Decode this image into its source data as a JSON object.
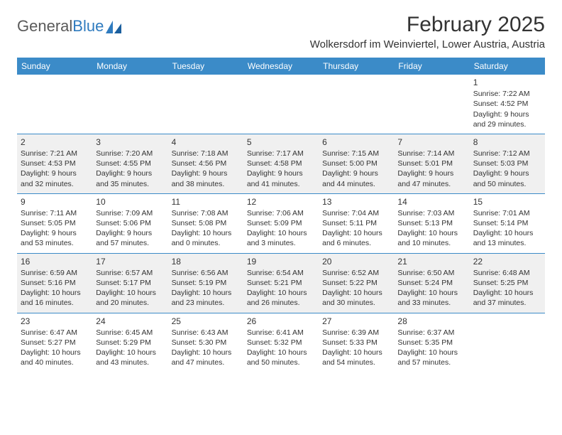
{
  "logo": {
    "text1": "General",
    "text2": "Blue"
  },
  "title": "February 2025",
  "location": "Wolkersdorf im Weinviertel, Lower Austria, Austria",
  "colors": {
    "header_bg": "#3b8bc8",
    "header_text": "#ffffff",
    "border": "#3b8bc8",
    "shade_bg": "#f0f0f0",
    "body_text": "#333333",
    "logo_gray": "#5a5a5a",
    "logo_blue": "#2f7bbf"
  },
  "day_names": [
    "Sunday",
    "Monday",
    "Tuesday",
    "Wednesday",
    "Thursday",
    "Friday",
    "Saturday"
  ],
  "weeks": [
    [
      {
        "empty": true
      },
      {
        "empty": true
      },
      {
        "empty": true
      },
      {
        "empty": true
      },
      {
        "empty": true
      },
      {
        "empty": true
      },
      {
        "n": "1",
        "sr": "Sunrise: 7:22 AM",
        "ss": "Sunset: 4:52 PM",
        "dl1": "Daylight: 9 hours",
        "dl2": "and 29 minutes."
      }
    ],
    [
      {
        "n": "2",
        "shade": true,
        "sr": "Sunrise: 7:21 AM",
        "ss": "Sunset: 4:53 PM",
        "dl1": "Daylight: 9 hours",
        "dl2": "and 32 minutes."
      },
      {
        "n": "3",
        "shade": true,
        "sr": "Sunrise: 7:20 AM",
        "ss": "Sunset: 4:55 PM",
        "dl1": "Daylight: 9 hours",
        "dl2": "and 35 minutes."
      },
      {
        "n": "4",
        "shade": true,
        "sr": "Sunrise: 7:18 AM",
        "ss": "Sunset: 4:56 PM",
        "dl1": "Daylight: 9 hours",
        "dl2": "and 38 minutes."
      },
      {
        "n": "5",
        "shade": true,
        "sr": "Sunrise: 7:17 AM",
        "ss": "Sunset: 4:58 PM",
        "dl1": "Daylight: 9 hours",
        "dl2": "and 41 minutes."
      },
      {
        "n": "6",
        "shade": true,
        "sr": "Sunrise: 7:15 AM",
        "ss": "Sunset: 5:00 PM",
        "dl1": "Daylight: 9 hours",
        "dl2": "and 44 minutes."
      },
      {
        "n": "7",
        "shade": true,
        "sr": "Sunrise: 7:14 AM",
        "ss": "Sunset: 5:01 PM",
        "dl1": "Daylight: 9 hours",
        "dl2": "and 47 minutes."
      },
      {
        "n": "8",
        "shade": true,
        "sr": "Sunrise: 7:12 AM",
        "ss": "Sunset: 5:03 PM",
        "dl1": "Daylight: 9 hours",
        "dl2": "and 50 minutes."
      }
    ],
    [
      {
        "n": "9",
        "sr": "Sunrise: 7:11 AM",
        "ss": "Sunset: 5:05 PM",
        "dl1": "Daylight: 9 hours",
        "dl2": "and 53 minutes."
      },
      {
        "n": "10",
        "sr": "Sunrise: 7:09 AM",
        "ss": "Sunset: 5:06 PM",
        "dl1": "Daylight: 9 hours",
        "dl2": "and 57 minutes."
      },
      {
        "n": "11",
        "sr": "Sunrise: 7:08 AM",
        "ss": "Sunset: 5:08 PM",
        "dl1": "Daylight: 10 hours",
        "dl2": "and 0 minutes."
      },
      {
        "n": "12",
        "sr": "Sunrise: 7:06 AM",
        "ss": "Sunset: 5:09 PM",
        "dl1": "Daylight: 10 hours",
        "dl2": "and 3 minutes."
      },
      {
        "n": "13",
        "sr": "Sunrise: 7:04 AM",
        "ss": "Sunset: 5:11 PM",
        "dl1": "Daylight: 10 hours",
        "dl2": "and 6 minutes."
      },
      {
        "n": "14",
        "sr": "Sunrise: 7:03 AM",
        "ss": "Sunset: 5:13 PM",
        "dl1": "Daylight: 10 hours",
        "dl2": "and 10 minutes."
      },
      {
        "n": "15",
        "sr": "Sunrise: 7:01 AM",
        "ss": "Sunset: 5:14 PM",
        "dl1": "Daylight: 10 hours",
        "dl2": "and 13 minutes."
      }
    ],
    [
      {
        "n": "16",
        "shade": true,
        "sr": "Sunrise: 6:59 AM",
        "ss": "Sunset: 5:16 PM",
        "dl1": "Daylight: 10 hours",
        "dl2": "and 16 minutes."
      },
      {
        "n": "17",
        "shade": true,
        "sr": "Sunrise: 6:57 AM",
        "ss": "Sunset: 5:17 PM",
        "dl1": "Daylight: 10 hours",
        "dl2": "and 20 minutes."
      },
      {
        "n": "18",
        "shade": true,
        "sr": "Sunrise: 6:56 AM",
        "ss": "Sunset: 5:19 PM",
        "dl1": "Daylight: 10 hours",
        "dl2": "and 23 minutes."
      },
      {
        "n": "19",
        "shade": true,
        "sr": "Sunrise: 6:54 AM",
        "ss": "Sunset: 5:21 PM",
        "dl1": "Daylight: 10 hours",
        "dl2": "and 26 minutes."
      },
      {
        "n": "20",
        "shade": true,
        "sr": "Sunrise: 6:52 AM",
        "ss": "Sunset: 5:22 PM",
        "dl1": "Daylight: 10 hours",
        "dl2": "and 30 minutes."
      },
      {
        "n": "21",
        "shade": true,
        "sr": "Sunrise: 6:50 AM",
        "ss": "Sunset: 5:24 PM",
        "dl1": "Daylight: 10 hours",
        "dl2": "and 33 minutes."
      },
      {
        "n": "22",
        "shade": true,
        "sr": "Sunrise: 6:48 AM",
        "ss": "Sunset: 5:25 PM",
        "dl1": "Daylight: 10 hours",
        "dl2": "and 37 minutes."
      }
    ],
    [
      {
        "n": "23",
        "sr": "Sunrise: 6:47 AM",
        "ss": "Sunset: 5:27 PM",
        "dl1": "Daylight: 10 hours",
        "dl2": "and 40 minutes."
      },
      {
        "n": "24",
        "sr": "Sunrise: 6:45 AM",
        "ss": "Sunset: 5:29 PM",
        "dl1": "Daylight: 10 hours",
        "dl2": "and 43 minutes."
      },
      {
        "n": "25",
        "sr": "Sunrise: 6:43 AM",
        "ss": "Sunset: 5:30 PM",
        "dl1": "Daylight: 10 hours",
        "dl2": "and 47 minutes."
      },
      {
        "n": "26",
        "sr": "Sunrise: 6:41 AM",
        "ss": "Sunset: 5:32 PM",
        "dl1": "Daylight: 10 hours",
        "dl2": "and 50 minutes."
      },
      {
        "n": "27",
        "sr": "Sunrise: 6:39 AM",
        "ss": "Sunset: 5:33 PM",
        "dl1": "Daylight: 10 hours",
        "dl2": "and 54 minutes."
      },
      {
        "n": "28",
        "sr": "Sunrise: 6:37 AM",
        "ss": "Sunset: 5:35 PM",
        "dl1": "Daylight: 10 hours",
        "dl2": "and 57 minutes."
      },
      {
        "empty": true
      }
    ]
  ]
}
